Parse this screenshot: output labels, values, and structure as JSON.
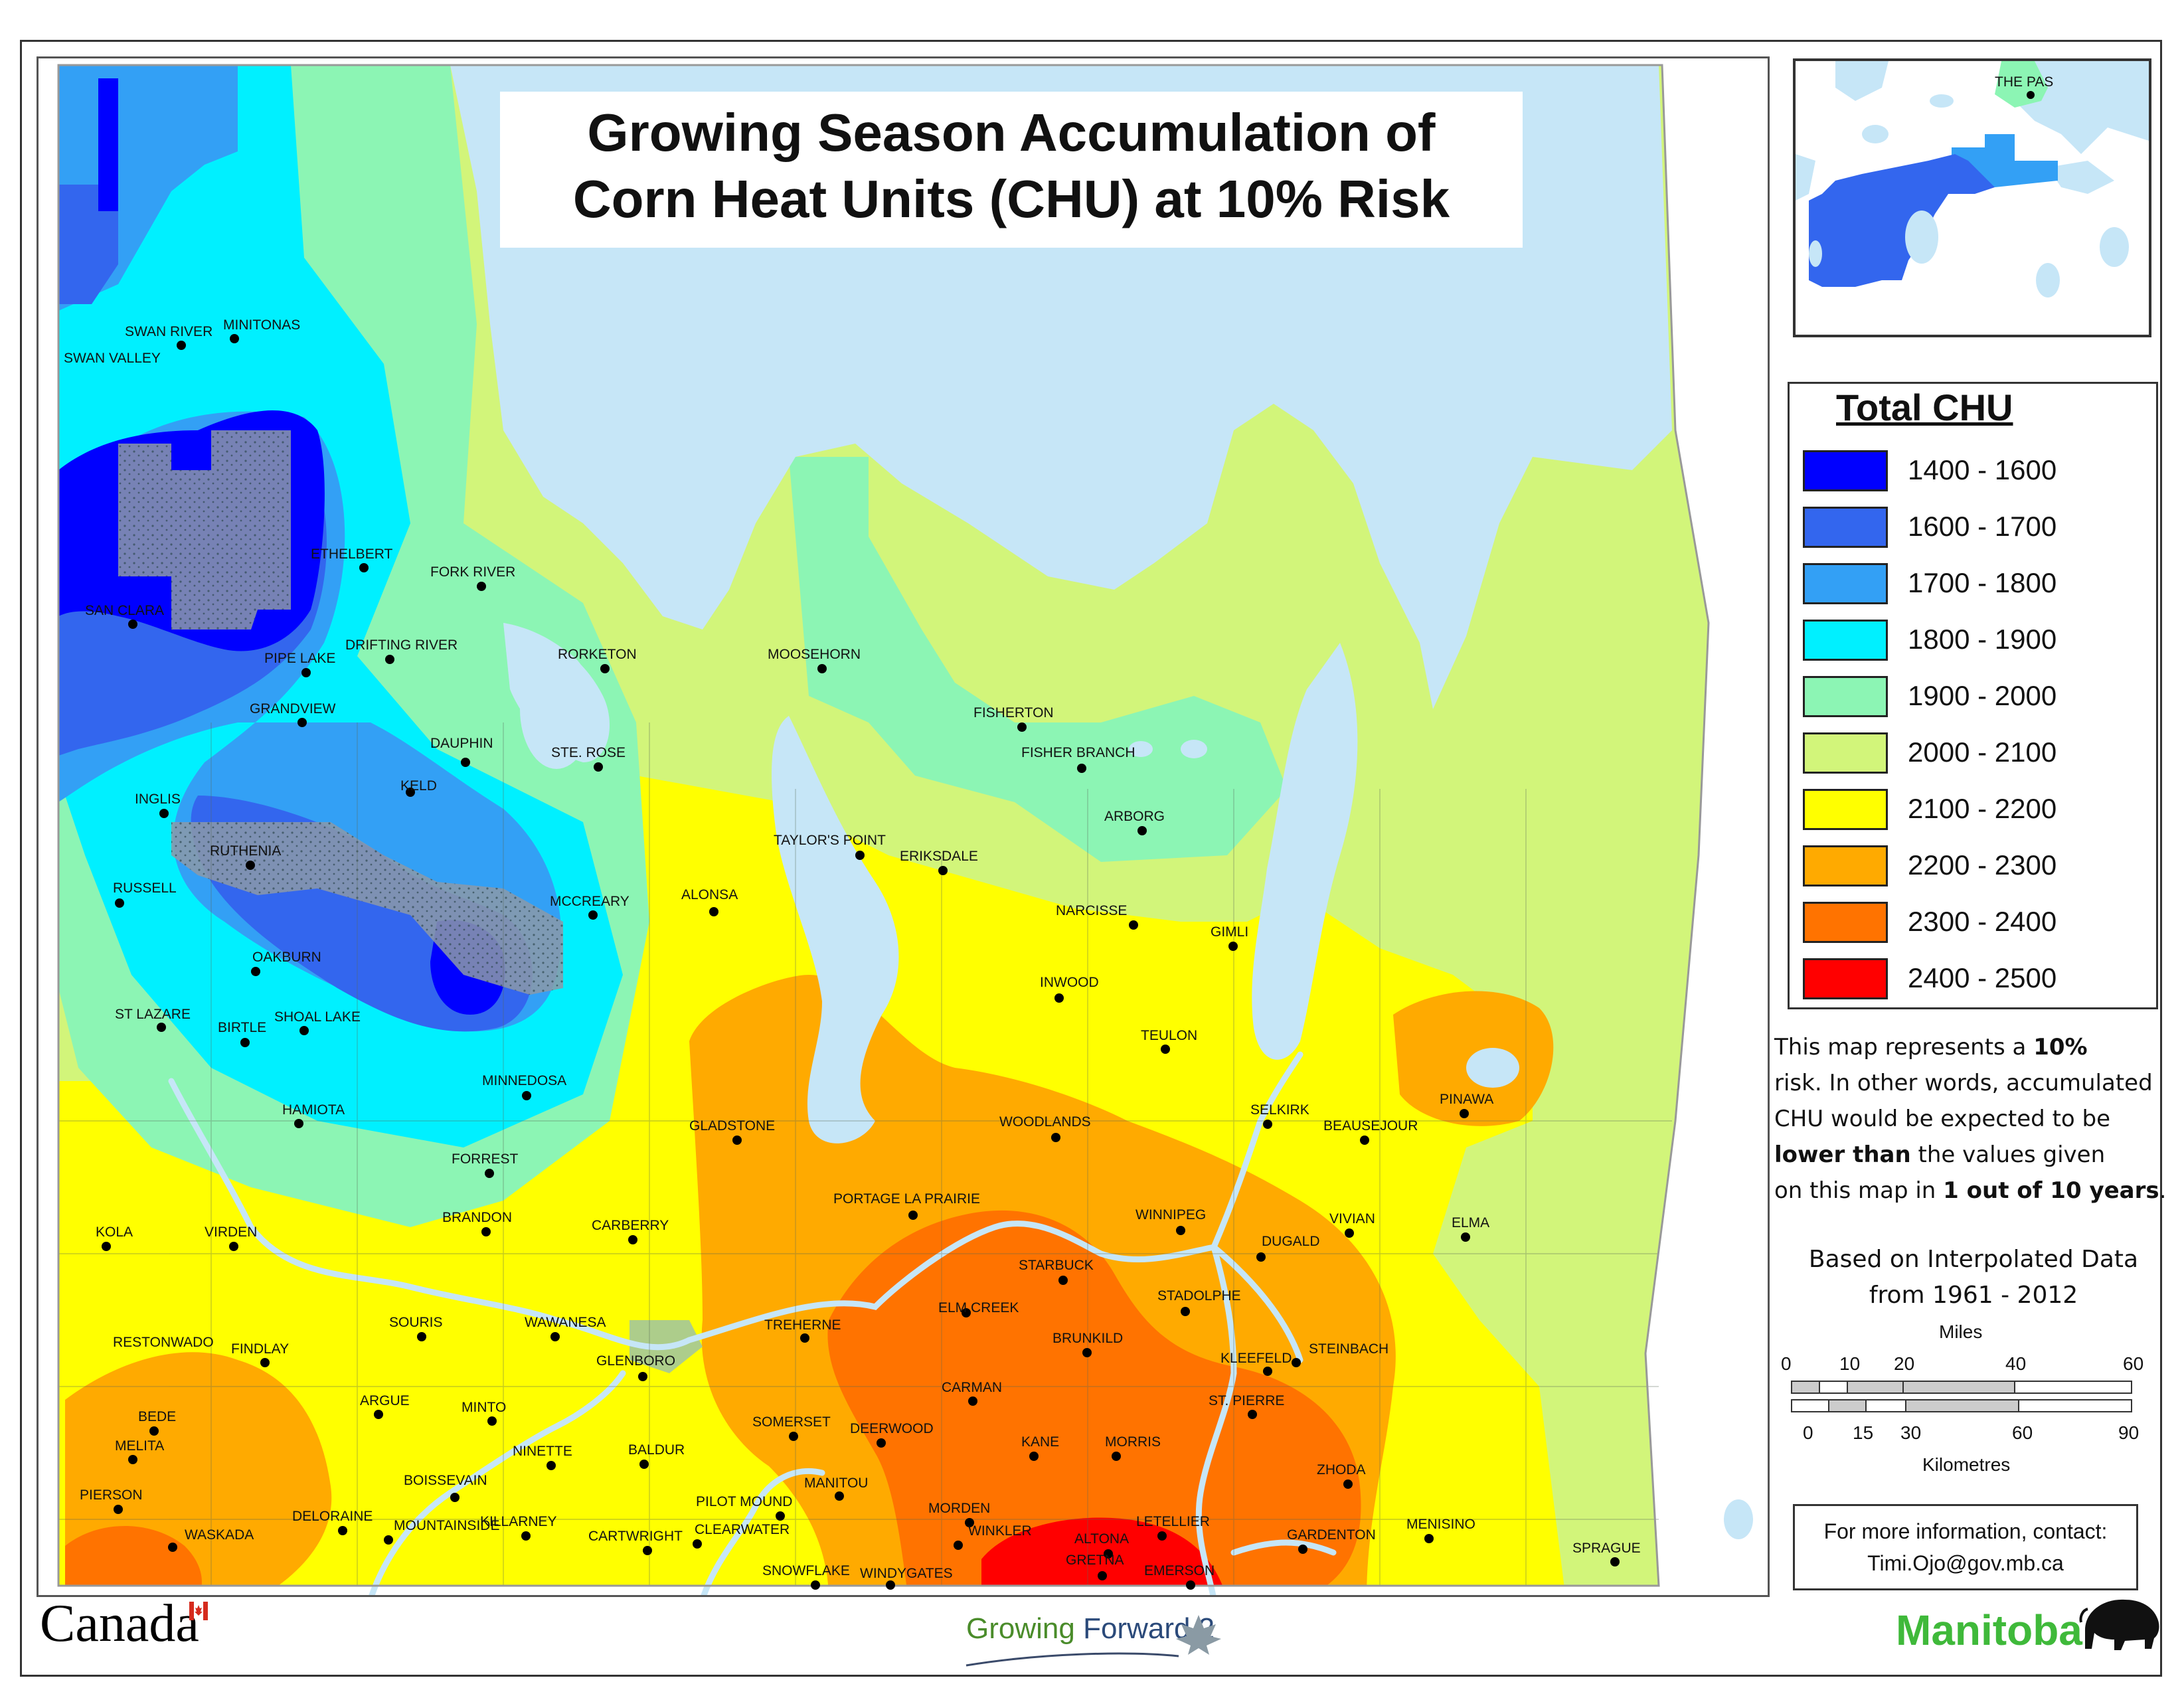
{
  "title": {
    "line1": "Growing Season Accumulation of",
    "line2": "Corn Heat Units (CHU) at 10% Risk"
  },
  "legend": {
    "title": "Total CHU",
    "classes": [
      {
        "label": "1400 - 1600",
        "color": "#0000ff"
      },
      {
        "label": "1600 - 1700",
        "color": "#3366ee"
      },
      {
        "label": "1700 - 1800",
        "color": "#33a0f5"
      },
      {
        "label": "1800 - 1900",
        "color": "#00f0ff"
      },
      {
        "label": "1900 - 2000",
        "color": "#8cf5b4"
      },
      {
        "label": "2000 - 2100",
        "color": "#d2f57a"
      },
      {
        "label": "2100 - 2200",
        "color": "#ffff00"
      },
      {
        "label": "2200 - 2300",
        "color": "#ffaa00"
      },
      {
        "label": "2300 - 2400",
        "color": "#ff7300"
      },
      {
        "label": "2400 - 2500",
        "color": "#ff0000"
      }
    ]
  },
  "colors": {
    "water": "#c6e6f7",
    "park_overlay": "#8c99a8",
    "frame": "#333333"
  },
  "notes": {
    "l1_a": "This map represents a ",
    "l1_b": "10%",
    "l2": "risk. In other words, accumulated",
    "l3": "CHU would be expected to be",
    "l4_a": "lower than",
    "l4_b": " the values given",
    "l5_a": "on this map in ",
    "l5_b": "1 out of 10 years",
    "l5_c": "."
  },
  "based": {
    "line1": "Based on Interpolated Data",
    "line2": "from 1961 - 2012"
  },
  "scale": {
    "miles_label": "Miles",
    "km_label": "Kilometres",
    "miles_ticks": [
      "0",
      "10",
      "20",
      "40",
      "60"
    ],
    "km_ticks": [
      "0",
      "15",
      "30",
      "60",
      "90"
    ]
  },
  "contact": {
    "line1": "For more information, contact:",
    "line2": "Timi.Ojo@gov.mb.ca"
  },
  "logos": {
    "canada": "Canada",
    "growing_forward_a": "Growing ",
    "growing_forward_b": "Forward 2",
    "manitoba": "Manitoba"
  },
  "inset_places": [
    "THE PAS"
  ],
  "places": [
    "SWAN RIVER",
    "MINITONAS",
    "SWAN VALLEY",
    "ETHELBERT",
    "FORK RIVER",
    "SAN CLARA",
    "PIPE LAKE",
    "DRIFTING RIVER",
    "RORKETON",
    "MOOSEHORN",
    "GRANDVIEW",
    "FISHERTON",
    "DAUPHIN",
    "STE. ROSE",
    "FISHER BRANCH",
    "KELD",
    "INGLIS",
    "ARBORG",
    "TAYLOR'S POINT",
    "ERIKSDALE",
    "RUTHENIA",
    "RUSSELL",
    "ALONSA",
    "MCCREARY",
    "NARCISSE",
    "GIMLI",
    "OAKBURN",
    "INWOOD",
    "ST LAZARE",
    "SHOAL LAKE",
    "BIRTLE",
    "TEULON",
    "MINNEDOSA",
    "HAMIOTA",
    "PINAWA",
    "SELKIRK",
    "GLADSTONE",
    "WOODLANDS",
    "BEAUSEJOUR",
    "FORREST",
    "PORTAGE LA PRAIRIE",
    "KOLA",
    "VIRDEN",
    "BRANDON",
    "CARBERRY",
    "WINNIPEG",
    "VIVIAN",
    "ELMA",
    "DUGALD",
    "STARBUCK",
    "STADOLPHE",
    "ELM CREEK",
    "SOURIS",
    "WAWANESA",
    "TREHERNE",
    "RESTONWADO",
    "BRUNKILD",
    "FINDLAY",
    "STEINBACH",
    "GLENBORO",
    "KLEEFELD",
    "CARMAN",
    "ARGUE",
    "ST. PIERRE",
    "BEDE",
    "MINTO",
    "SOMERSET",
    "DEERWOOD",
    "MELITA",
    "KANE",
    "MORRIS",
    "NINETTE",
    "BALDUR",
    "ZHODA",
    "PIERSON",
    "BOISSEVAIN",
    "MANITOU",
    "PILOT MOUND",
    "MORDEN",
    "DELORAINE",
    "KILLARNEY",
    "LETELLIER",
    "MENISINO",
    "WINKLER",
    "MOUNTAINSIDE",
    "CLEARWATER",
    "GARDENTON",
    "WASKADA",
    "CARTWRIGHT",
    "ALTONA",
    "SPRAGUE",
    "GRETNA",
    "SNOWFLAKE",
    "WINDYGATES",
    "EMERSON"
  ]
}
